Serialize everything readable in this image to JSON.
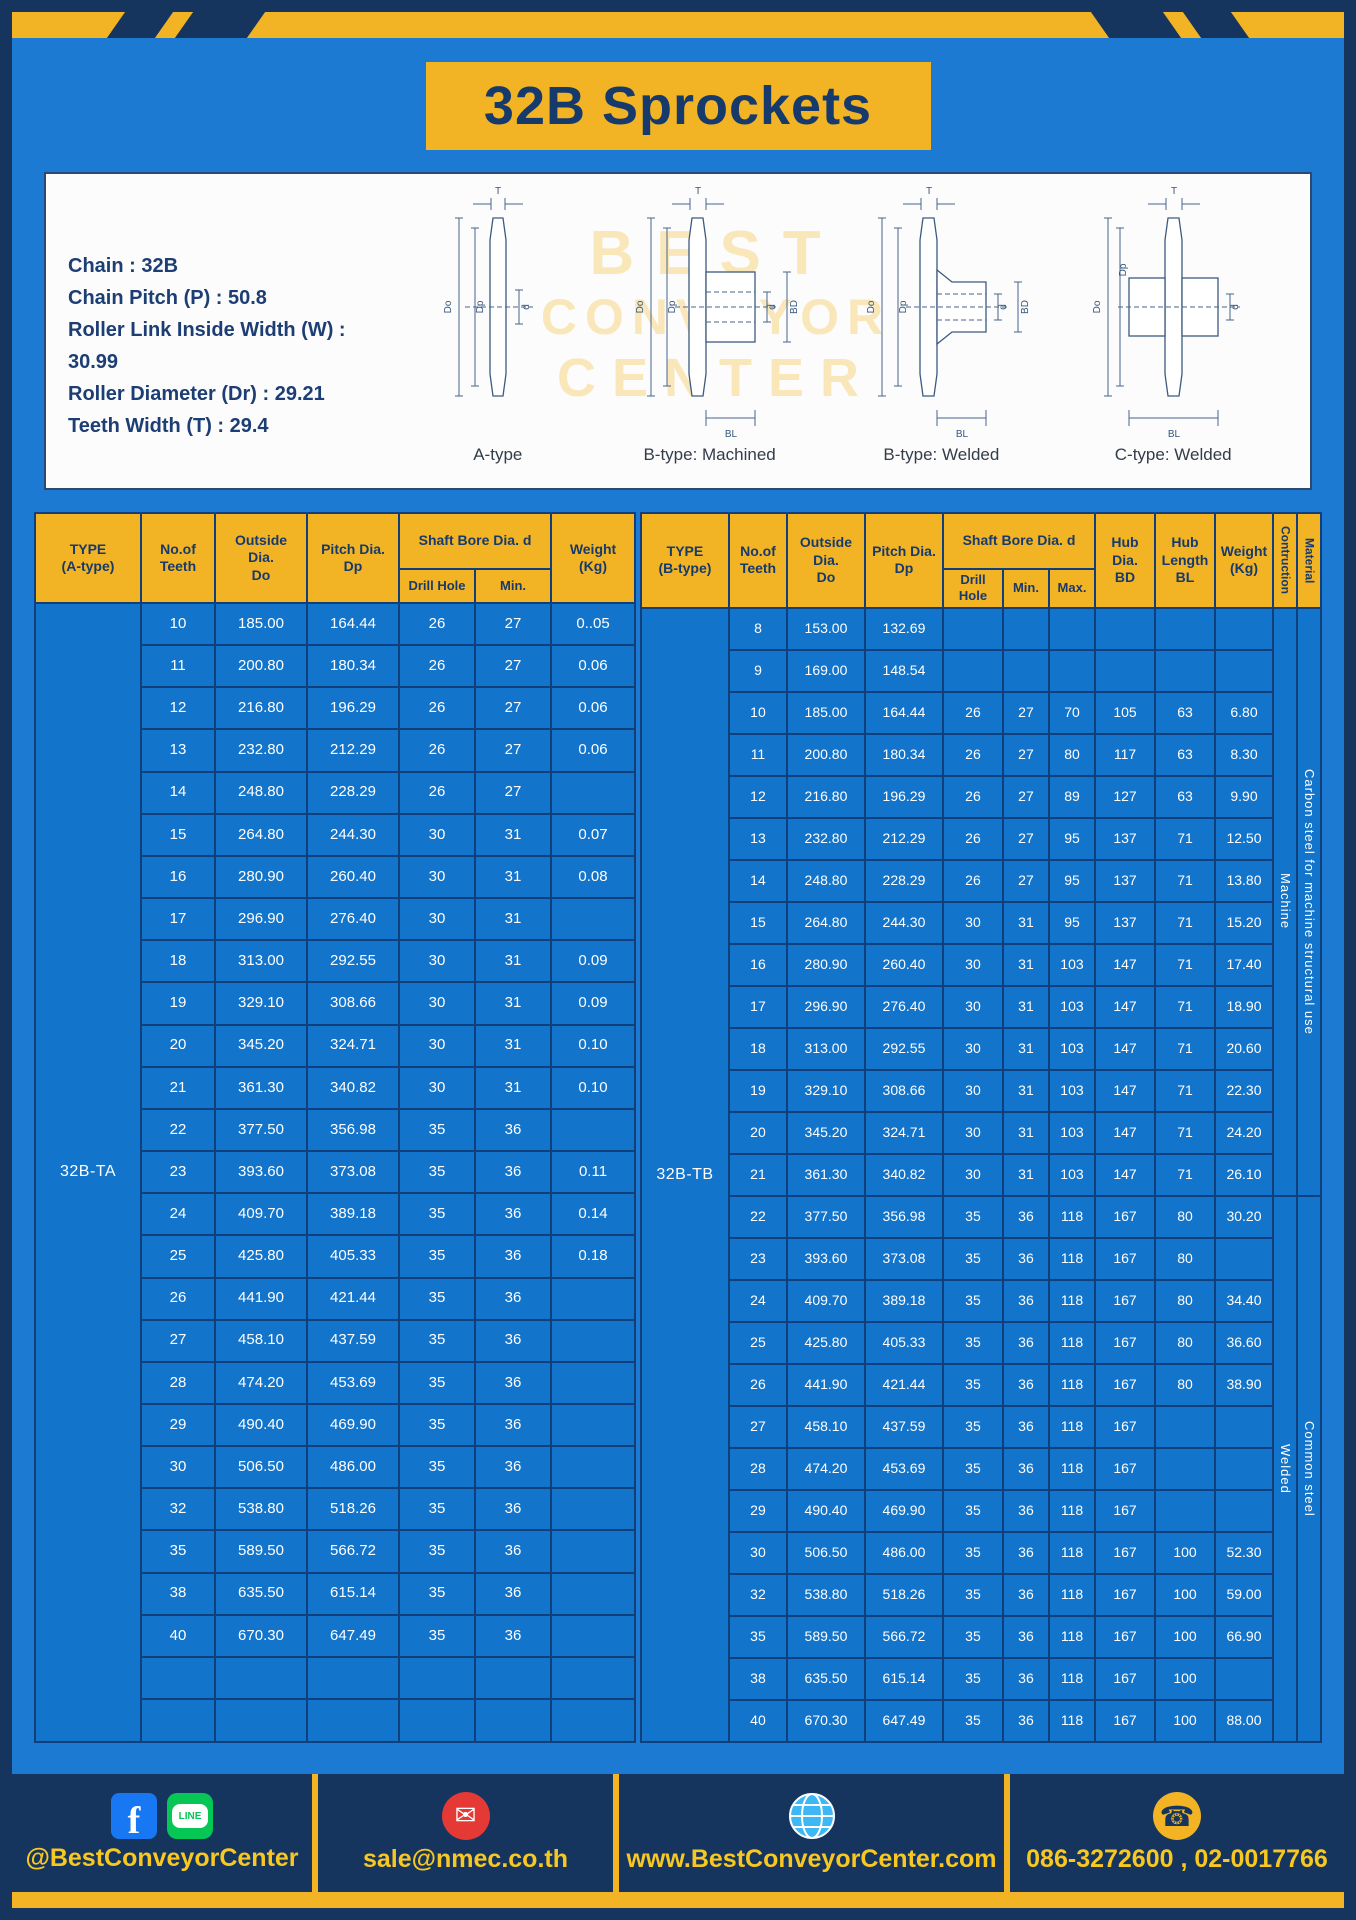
{
  "title": "32B Sprockets",
  "specs": {
    "lines": [
      "Chain  :  32B",
      "Chain Pitch (P)  :  50.8",
      "Roller Link Inside Width (W)  :  30.99",
      "Roller Diameter (Dr)  :  29.21",
      "Teeth Width (T)  :  29.4"
    ]
  },
  "watermark": {
    "line1": "BEST",
    "line2": "CONVEYOR",
    "line3": "CENTER"
  },
  "diagrams": {
    "labels": [
      "A-type",
      "B-type: Machined",
      "B-type: Welded",
      "C-type: Welded"
    ],
    "dims": {
      "t": "T",
      "dia_o": "Do",
      "dia_p": "Dp",
      "d": "d",
      "bd": "BD",
      "bl": "BL"
    }
  },
  "table_a": {
    "headers": {
      "type": "TYPE\n(A-type)",
      "teeth": "No.of\nTeeth",
      "outside": "Outside\nDia.\nDo",
      "pitch": "Pitch Dia.\nDp",
      "shaft": "Shaft Bore Dia. d",
      "drill": "Drill Hole",
      "min": "Min.",
      "weight": "Weight\n(Kg)"
    },
    "type_label": "32B-TA",
    "rows": [
      [
        "10",
        "185.00",
        "164.44",
        "26",
        "27",
        "0..05"
      ],
      [
        "11",
        "200.80",
        "180.34",
        "26",
        "27",
        "0.06"
      ],
      [
        "12",
        "216.80",
        "196.29",
        "26",
        "27",
        "0.06"
      ],
      [
        "13",
        "232.80",
        "212.29",
        "26",
        "27",
        "0.06"
      ],
      [
        "14",
        "248.80",
        "228.29",
        "26",
        "27",
        ""
      ],
      [
        "15",
        "264.80",
        "244.30",
        "30",
        "31",
        "0.07"
      ],
      [
        "16",
        "280.90",
        "260.40",
        "30",
        "31",
        "0.08"
      ],
      [
        "17",
        "296.90",
        "276.40",
        "30",
        "31",
        ""
      ],
      [
        "18",
        "313.00",
        "292.55",
        "30",
        "31",
        "0.09"
      ],
      [
        "19",
        "329.10",
        "308.66",
        "30",
        "31",
        "0.09"
      ],
      [
        "20",
        "345.20",
        "324.71",
        "30",
        "31",
        "0.10"
      ],
      [
        "21",
        "361.30",
        "340.82",
        "30",
        "31",
        "0.10"
      ],
      [
        "22",
        "377.50",
        "356.98",
        "35",
        "36",
        ""
      ],
      [
        "23",
        "393.60",
        "373.08",
        "35",
        "36",
        "0.11"
      ],
      [
        "24",
        "409.70",
        "389.18",
        "35",
        "36",
        "0.14"
      ],
      [
        "25",
        "425.80",
        "405.33",
        "35",
        "36",
        "0.18"
      ],
      [
        "26",
        "441.90",
        "421.44",
        "35",
        "36",
        ""
      ],
      [
        "27",
        "458.10",
        "437.59",
        "35",
        "36",
        ""
      ],
      [
        "28",
        "474.20",
        "453.69",
        "35",
        "36",
        ""
      ],
      [
        "29",
        "490.40",
        "469.90",
        "35",
        "36",
        ""
      ],
      [
        "30",
        "506.50",
        "486.00",
        "35",
        "36",
        ""
      ],
      [
        "32",
        "538.80",
        "518.26",
        "35",
        "36",
        ""
      ],
      [
        "35",
        "589.50",
        "566.72",
        "35",
        "36",
        ""
      ],
      [
        "38",
        "635.50",
        "615.14",
        "35",
        "36",
        ""
      ],
      [
        "40",
        "670.30",
        "647.49",
        "35",
        "36",
        ""
      ],
      [
        "",
        "",
        "",
        "",
        "",
        ""
      ],
      [
        "",
        "",
        "",
        "",
        "",
        ""
      ]
    ]
  },
  "table_b": {
    "headers": {
      "type": "TYPE\n(B-type)",
      "teeth": "No.of\nTeeth",
      "outside": "Outside\nDia.\nDo",
      "pitch": "Pitch Dia.\nDp",
      "shaft": "Shaft Bore Dia. d",
      "drill": "Drill Hole",
      "min": "Min.",
      "max": "Max.",
      "hub_dia": "Hub Dia.\nBD",
      "hub_len": "Hub\nLength\nBL",
      "weight": "Weight\n(Kg)",
      "construction": "Contruction",
      "material": "Material"
    },
    "type_label": "32B-TB",
    "construction_spans": [
      {
        "label": "Machine",
        "rows": 14
      },
      {
        "label": "Welded",
        "rows": 13
      }
    ],
    "material_spans": [
      {
        "label": "Carbon steel for machine structural use",
        "rows": 14
      },
      {
        "label": "Common steel",
        "rows": 13
      }
    ],
    "rows": [
      [
        "8",
        "153.00",
        "132.69",
        "",
        "",
        "",
        "",
        "",
        ""
      ],
      [
        "9",
        "169.00",
        "148.54",
        "",
        "",
        "",
        "",
        "",
        ""
      ],
      [
        "10",
        "185.00",
        "164.44",
        "26",
        "27",
        "70",
        "105",
        "63",
        "6.80"
      ],
      [
        "11",
        "200.80",
        "180.34",
        "26",
        "27",
        "80",
        "117",
        "63",
        "8.30"
      ],
      [
        "12",
        "216.80",
        "196.29",
        "26",
        "27",
        "89",
        "127",
        "63",
        "9.90"
      ],
      [
        "13",
        "232.80",
        "212.29",
        "26",
        "27",
        "95",
        "137",
        "71",
        "12.50"
      ],
      [
        "14",
        "248.80",
        "228.29",
        "26",
        "27",
        "95",
        "137",
        "71",
        "13.80"
      ],
      [
        "15",
        "264.80",
        "244.30",
        "30",
        "31",
        "95",
        "137",
        "71",
        "15.20"
      ],
      [
        "16",
        "280.90",
        "260.40",
        "30",
        "31",
        "103",
        "147",
        "71",
        "17.40"
      ],
      [
        "17",
        "296.90",
        "276.40",
        "30",
        "31",
        "103",
        "147",
        "71",
        "18.90"
      ],
      [
        "18",
        "313.00",
        "292.55",
        "30",
        "31",
        "103",
        "147",
        "71",
        "20.60"
      ],
      [
        "19",
        "329.10",
        "308.66",
        "30",
        "31",
        "103",
        "147",
        "71",
        "22.30"
      ],
      [
        "20",
        "345.20",
        "324.71",
        "30",
        "31",
        "103",
        "147",
        "71",
        "24.20"
      ],
      [
        "21",
        "361.30",
        "340.82",
        "30",
        "31",
        "103",
        "147",
        "71",
        "26.10"
      ],
      [
        "22",
        "377.50",
        "356.98",
        "35",
        "36",
        "118",
        "167",
        "80",
        "30.20"
      ],
      [
        "23",
        "393.60",
        "373.08",
        "35",
        "36",
        "118",
        "167",
        "80",
        ""
      ],
      [
        "24",
        "409.70",
        "389.18",
        "35",
        "36",
        "118",
        "167",
        "80",
        "34.40"
      ],
      [
        "25",
        "425.80",
        "405.33",
        "35",
        "36",
        "118",
        "167",
        "80",
        "36.60"
      ],
      [
        "26",
        "441.90",
        "421.44",
        "35",
        "36",
        "118",
        "167",
        "80",
        "38.90"
      ],
      [
        "27",
        "458.10",
        "437.59",
        "35",
        "36",
        "118",
        "167",
        "",
        ""
      ],
      [
        "28",
        "474.20",
        "453.69",
        "35",
        "36",
        "118",
        "167",
        "",
        ""
      ],
      [
        "29",
        "490.40",
        "469.90",
        "35",
        "36",
        "118",
        "167",
        "",
        ""
      ],
      [
        "30",
        "506.50",
        "486.00",
        "35",
        "36",
        "118",
        "167",
        "100",
        "52.30"
      ],
      [
        "32",
        "538.80",
        "518.26",
        "35",
        "36",
        "118",
        "167",
        "100",
        "59.00"
      ],
      [
        "35",
        "589.50",
        "566.72",
        "35",
        "36",
        "118",
        "167",
        "100",
        "66.90"
      ],
      [
        "38",
        "635.50",
        "615.14",
        "35",
        "36",
        "118",
        "167",
        "100",
        ""
      ],
      [
        "40",
        "670.30",
        "647.49",
        "35",
        "36",
        "118",
        "167",
        "100",
        "88.00"
      ]
    ]
  },
  "footer": {
    "facebook_label": "@BestConveyorCenter",
    "email": "sale@nmec.co.th",
    "website": "www.BestConveyorCenter.com",
    "phone": "086-3272600 , 02-0017766"
  },
  "icons": {
    "facebook_glyph": "f",
    "line_text": "LINE",
    "email_glyph": "✉",
    "phone_glyph": "☎"
  }
}
